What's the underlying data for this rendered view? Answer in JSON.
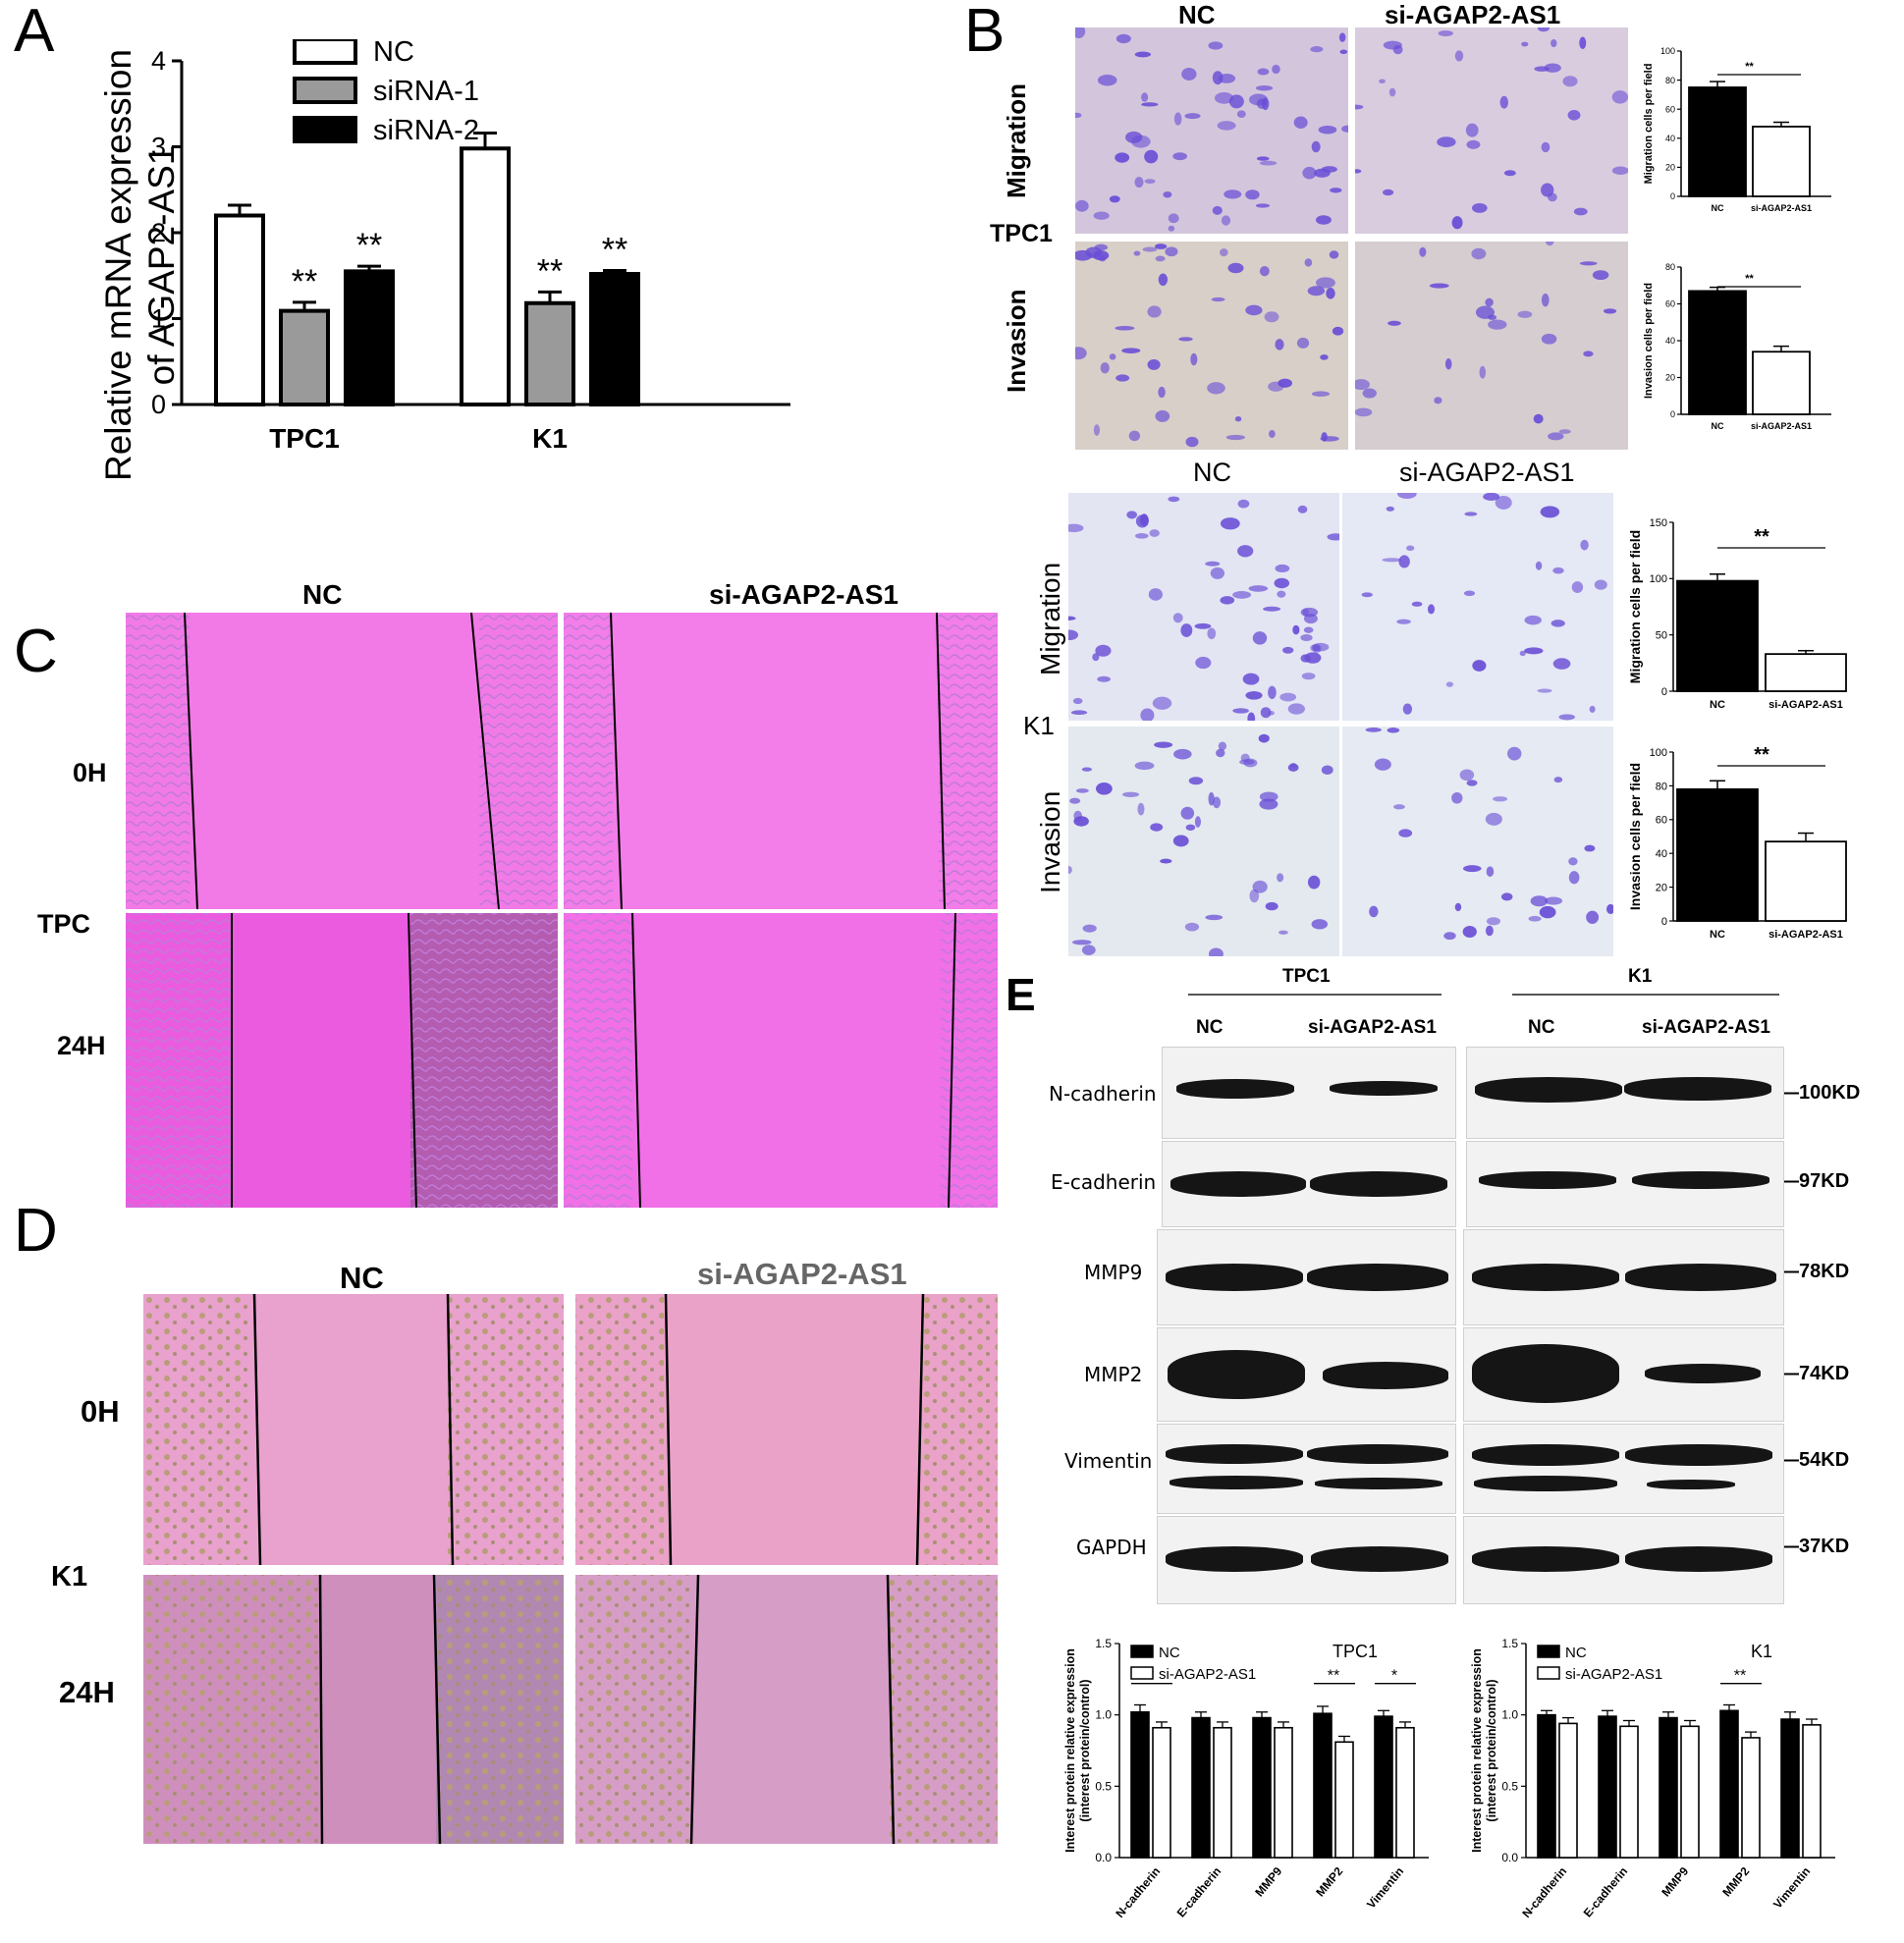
{
  "panel_letters": {
    "a": "A",
    "b": "B",
    "c": "C",
    "d": "D",
    "e": "E"
  },
  "colors": {
    "pink_scratch": "#f07de8",
    "pink_d": "#ea9ccd",
    "stain_purple": "#6a4fd6",
    "bg_micro_b": "#d4c7de",
    "bg_micro_k1": "#e3e6f3"
  },
  "panel_b": {
    "top": {
      "col_nc": "NC",
      "col_si": "si-AGAP2-AS1",
      "row1": "Migration",
      "row2": "Invasion",
      "cell": "TPC1"
    },
    "bottom": {
      "col_nc": "NC",
      "col_si": "si-AGAP2-AS1",
      "row1": "Migration",
      "row2": "Invasion",
      "cell": "K1"
    }
  },
  "panel_c": {
    "col_nc": "NC",
    "col_si": "si-AGAP2-AS1",
    "t0": "0H",
    "cell": "TPC",
    "t24": "24H"
  },
  "panel_d": {
    "col_nc": "NC",
    "col_si": "si-AGAP2-AS1",
    "t0": "0H",
    "cell": "K1",
    "t24": "24H"
  },
  "panel_e": {
    "grp1": "TPC1",
    "grp2": "K1",
    "nc1": "NC",
    "si1": "si-AGAP2-AS1",
    "nc2": "NC",
    "si2": "si-AGAP2-AS1",
    "proteins": [
      "N-cadherin",
      "E-cadherin",
      "MMP9",
      "MMP2",
      "Vimentin",
      "GAPDH"
    ],
    "mw": [
      "—100KD",
      "—97KD",
      "—78KD",
      "—74KD",
      "—54KD",
      "—37KD"
    ]
  },
  "chart_data": [
    {
      "id": "A",
      "type": "bar",
      "categories": [
        "TPC1",
        "K1"
      ],
      "series": [
        {
          "name": "NC",
          "values": [
            2.2,
            2.98
          ],
          "errors": [
            0.12,
            0.18
          ],
          "color": "#ffffff"
        },
        {
          "name": "siRNA-1",
          "values": [
            1.09,
            1.18
          ],
          "errors": [
            0.1,
            0.13
          ],
          "color": "#9a9a9a"
        },
        {
          "name": "siRNA-2",
          "values": [
            1.55,
            1.52
          ],
          "errors": [
            0.06,
            0.04
          ],
          "color": "#000000"
        }
      ],
      "annotations": [
        [
          "",
          "**",
          "**"
        ],
        [
          "",
          "**",
          "**"
        ]
      ],
      "ylabel": "Relative mRNA expression\nof AGAP2-AS1",
      "yticks": [
        "0",
        "1",
        "2",
        "3",
        "4"
      ],
      "ylim": [
        0,
        4
      ]
    },
    {
      "id": "B-TPC1-migration",
      "type": "bar",
      "categories": [
        "NC",
        "si-AGAP2-AS1"
      ],
      "values": [
        75,
        48
      ],
      "errors": [
        4,
        3
      ],
      "colors": [
        "#000000",
        "#ffffff"
      ],
      "ylabel": "Migration cells per field",
      "yticks": [
        "0",
        "20",
        "40",
        "60",
        "80",
        "100"
      ],
      "ylim": [
        0,
        100
      ],
      "sig": "**"
    },
    {
      "id": "B-TPC1-invasion",
      "type": "bar",
      "categories": [
        "NC",
        "si-AGAP2-AS1"
      ],
      "values": [
        67,
        34
      ],
      "errors": [
        2,
        3
      ],
      "colors": [
        "#000000",
        "#ffffff"
      ],
      "ylabel": "Invasion cells per field",
      "yticks": [
        "0",
        "20",
        "40",
        "60",
        "80"
      ],
      "ylim": [
        0,
        80
      ],
      "sig": "**"
    },
    {
      "id": "B-K1-migration",
      "type": "bar",
      "categories": [
        "NC",
        "si-AGAP2-AS1"
      ],
      "values": [
        98,
        33
      ],
      "errors": [
        6,
        3
      ],
      "colors": [
        "#000000",
        "#ffffff"
      ],
      "ylabel": "Migration cells per field",
      "yticks": [
        "0",
        "50",
        "100",
        "150"
      ],
      "ylim": [
        0,
        150
      ],
      "sig": "**"
    },
    {
      "id": "B-K1-invasion",
      "type": "bar",
      "categories": [
        "NC",
        "si-AGAP2-AS1"
      ],
      "values": [
        78,
        47
      ],
      "errors": [
        5,
        5
      ],
      "colors": [
        "#000000",
        "#ffffff"
      ],
      "ylabel": "Invasion cells per field",
      "yticks": [
        "0",
        "20",
        "40",
        "60",
        "80",
        "100"
      ],
      "ylim": [
        0,
        100
      ],
      "sig": "**"
    },
    {
      "id": "E-TPC1",
      "type": "bar",
      "title": "TPC1",
      "categories": [
        "N-cadherin",
        "E-cadherin",
        "MMP9",
        "MMP2",
        "Vimentin"
      ],
      "series": [
        {
          "name": "NC",
          "values": [
            1.02,
            0.98,
            0.98,
            1.01,
            0.99
          ],
          "errors": [
            0.05,
            0.04,
            0.04,
            0.05,
            0.04
          ],
          "color": "#000000"
        },
        {
          "name": "si-AGAP2-AS1",
          "values": [
            0.91,
            0.91,
            0.91,
            0.81,
            0.91
          ],
          "errors": [
            0.04,
            0.04,
            0.04,
            0.04,
            0.04
          ],
          "color": "#ffffff"
        }
      ],
      "sig": [
        "*",
        "",
        "",
        "**",
        "*"
      ],
      "ylabel": "Interest protein relative expression\n(interest protein/control)",
      "yticks": [
        "0.0",
        "0.5",
        "1.0",
        "1.5"
      ],
      "ylim": [
        0,
        1.5
      ]
    },
    {
      "id": "E-K1",
      "type": "bar",
      "title": "K1",
      "categories": [
        "N-cadherin",
        "E-cadherin",
        "MMP9",
        "MMP2",
        "Vimentin"
      ],
      "series": [
        {
          "name": "NC",
          "values": [
            1.0,
            0.99,
            0.98,
            1.03,
            0.97
          ],
          "errors": [
            0.03,
            0.04,
            0.04,
            0.04,
            0.05
          ],
          "color": "#000000"
        },
        {
          "name": "si-AGAP2-AS1",
          "values": [
            0.94,
            0.92,
            0.92,
            0.84,
            0.93
          ],
          "errors": [
            0.04,
            0.04,
            0.04,
            0.04,
            0.04
          ],
          "color": "#ffffff"
        }
      ],
      "sig": [
        "",
        "",
        "",
        "**",
        ""
      ],
      "ylabel": "Interest protein relative expression\n(interest protein/control)",
      "yticks": [
        "0.0",
        "0.5",
        "1.0",
        "1.5"
      ],
      "ylim": [
        0,
        1.5
      ]
    }
  ]
}
